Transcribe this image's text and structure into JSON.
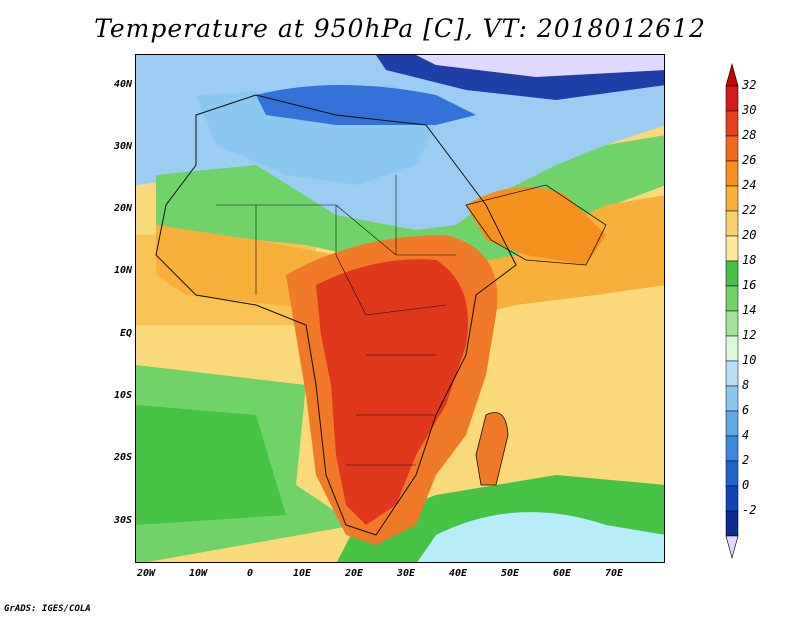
{
  "title": "Temperature at 950hPa [C], VT: 2018012612",
  "credit": "GrADS: IGES/COLA",
  "lat_labels": [
    "40N",
    "30N",
    "20N",
    "10N",
    "EQ",
    "10S",
    "20S",
    "30S"
  ],
  "lon_labels": [
    "20W",
    "10W",
    "0",
    "10E",
    "20E",
    "30E",
    "40E",
    "50E",
    "60E",
    "70E"
  ],
  "colorbar": {
    "labels": [
      "32",
      "30",
      "28",
      "26",
      "24",
      "22",
      "20",
      "18",
      "16",
      "14",
      "12",
      "10",
      "8",
      "6",
      "4",
      "2",
      "0",
      "-2"
    ],
    "colors": [
      "#d7191c",
      "#e8401d",
      "#f06a1f",
      "#f5901f",
      "#f7b13a",
      "#f9d16b",
      "#fbeb9a",
      "#46c245",
      "#6fd36a",
      "#a0e596",
      "#dbf7dc",
      "#b7dff5",
      "#8cc7f0",
      "#5fa9e6",
      "#3b88dc",
      "#1f66cc",
      "#1246b8",
      "#0b2a8c"
    ],
    "low_color": "#1a1a70",
    "high_color": "#c80000",
    "below_min_color": "#e0d8ff"
  },
  "map_colors": {
    "ocean_med": "#7fb8ec",
    "cold_sahara": "#9cccf2",
    "atlantic_n": "#f7c355",
    "atlantic_s": "#7ddc76",
    "south_ocean": "#b9ecf9",
    "indian": "#f9d979",
    "hot_core": "#e0381d",
    "hot_ring": "#f07a28",
    "med": "#3571d8",
    "europe": "#1f3fa8"
  }
}
